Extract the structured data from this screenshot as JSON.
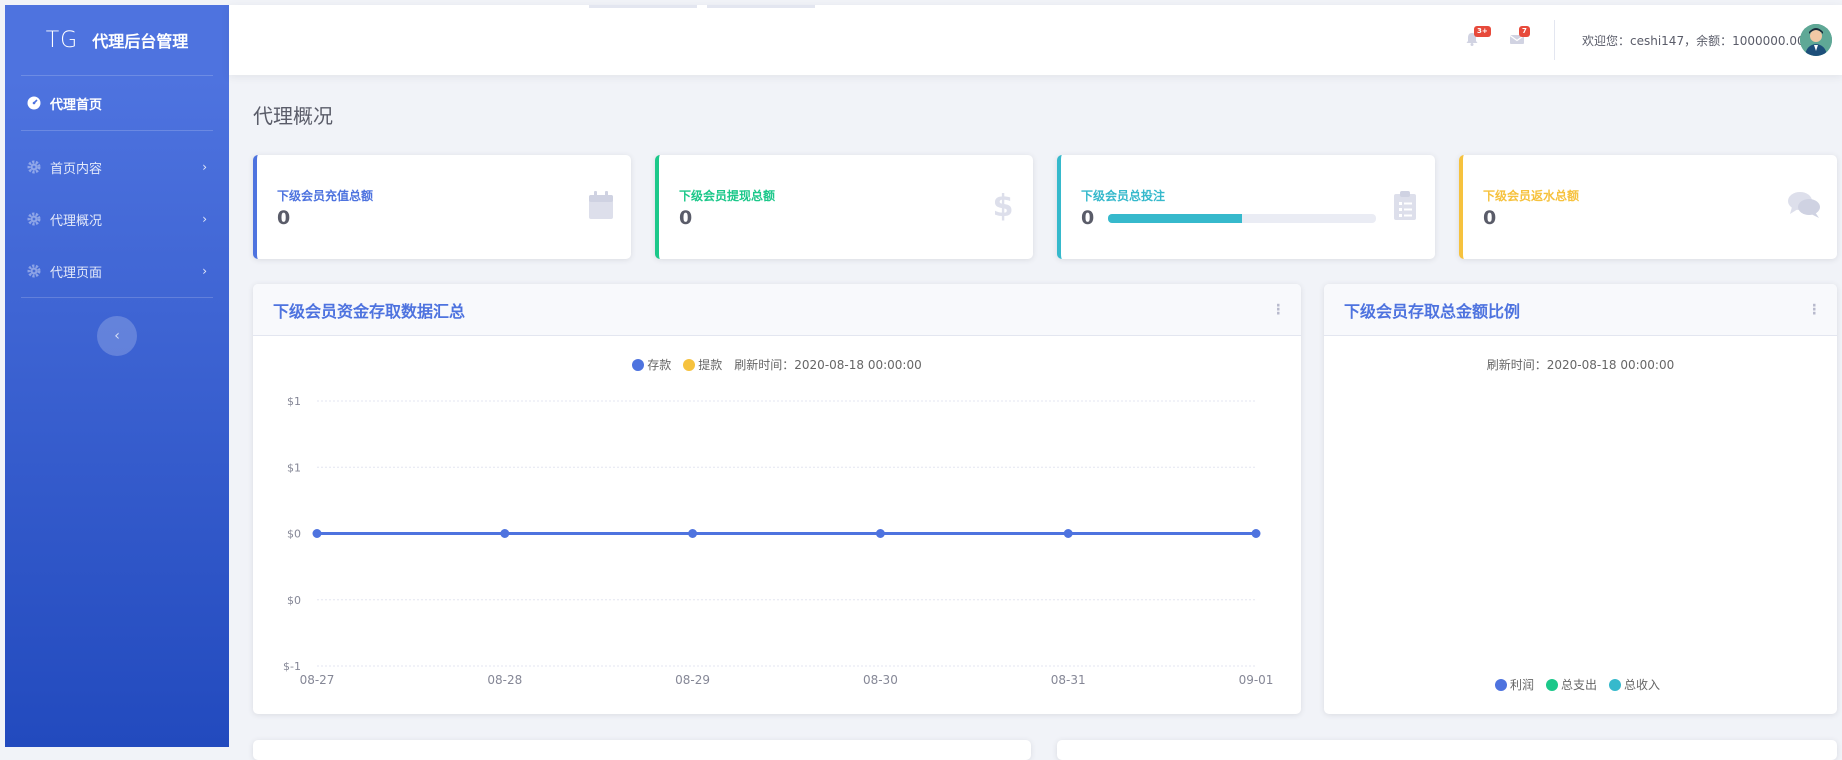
{
  "sidebar": {
    "brand_mark": "TG",
    "brand_text": "代理后台管理",
    "items": [
      {
        "label": "代理首页"
      },
      {
        "label": "首页内容"
      },
      {
        "label": "代理概况"
      },
      {
        "label": "代理页面"
      }
    ]
  },
  "topbar": {
    "alerts_badge": "3+",
    "messages_badge": "7",
    "welcome": "欢迎您：ceshi147，余额：1000000.00"
  },
  "page": {
    "title": "代理概况"
  },
  "cards": [
    {
      "label": "下级会员充值总额",
      "value": "0",
      "color": "#4e73df",
      "icon": "calendar-icon"
    },
    {
      "label": "下级会员提现总额",
      "value": "0",
      "color": "#1cc88a",
      "icon": "dollar-icon"
    },
    {
      "label": "下级会员总投注",
      "value": "0",
      "color": "#36b9cc",
      "icon": "clipboard-icon",
      "progress": 0.5
    },
    {
      "label": "下级会员返水总额",
      "value": "0",
      "color": "#f6c23e",
      "icon": "comments-icon"
    }
  ],
  "line_panel": {
    "title": "下级会员资金存取数据汇总",
    "refresh": "刷新时间：2020-08-18 00:00:00"
  },
  "pie_panel": {
    "title": "下级会员存取总金额比例",
    "refresh": "刷新时间：2020-08-18 00:00:00"
  },
  "chart_data": [
    {
      "type": "line",
      "title": "下级会员资金存取数据汇总",
      "x": [
        "08-27",
        "08-28",
        "08-29",
        "08-30",
        "08-31",
        "09-01"
      ],
      "y_ticks": [
        "$1",
        "$1",
        "$0",
        "$0",
        "$-1"
      ],
      "ylim": [
        -1,
        1
      ],
      "grid": true,
      "legend_placement": "top",
      "series": [
        {
          "name": "存款",
          "color": "#4e73df",
          "values": [
            0,
            0,
            0,
            0,
            0,
            0
          ]
        },
        {
          "name": "提款",
          "color": "#f6c23e",
          "values": [
            0,
            0,
            0,
            0,
            0,
            0
          ]
        }
      ]
    },
    {
      "type": "pie",
      "title": "下级会员存取总金额比例",
      "legend_placement": "bottom",
      "labels": [
        "利润",
        "总支出",
        "总收入"
      ],
      "colors": [
        "#4e73df",
        "#1cc88a",
        "#36b9cc"
      ],
      "values": [
        0,
        0,
        0
      ]
    }
  ]
}
